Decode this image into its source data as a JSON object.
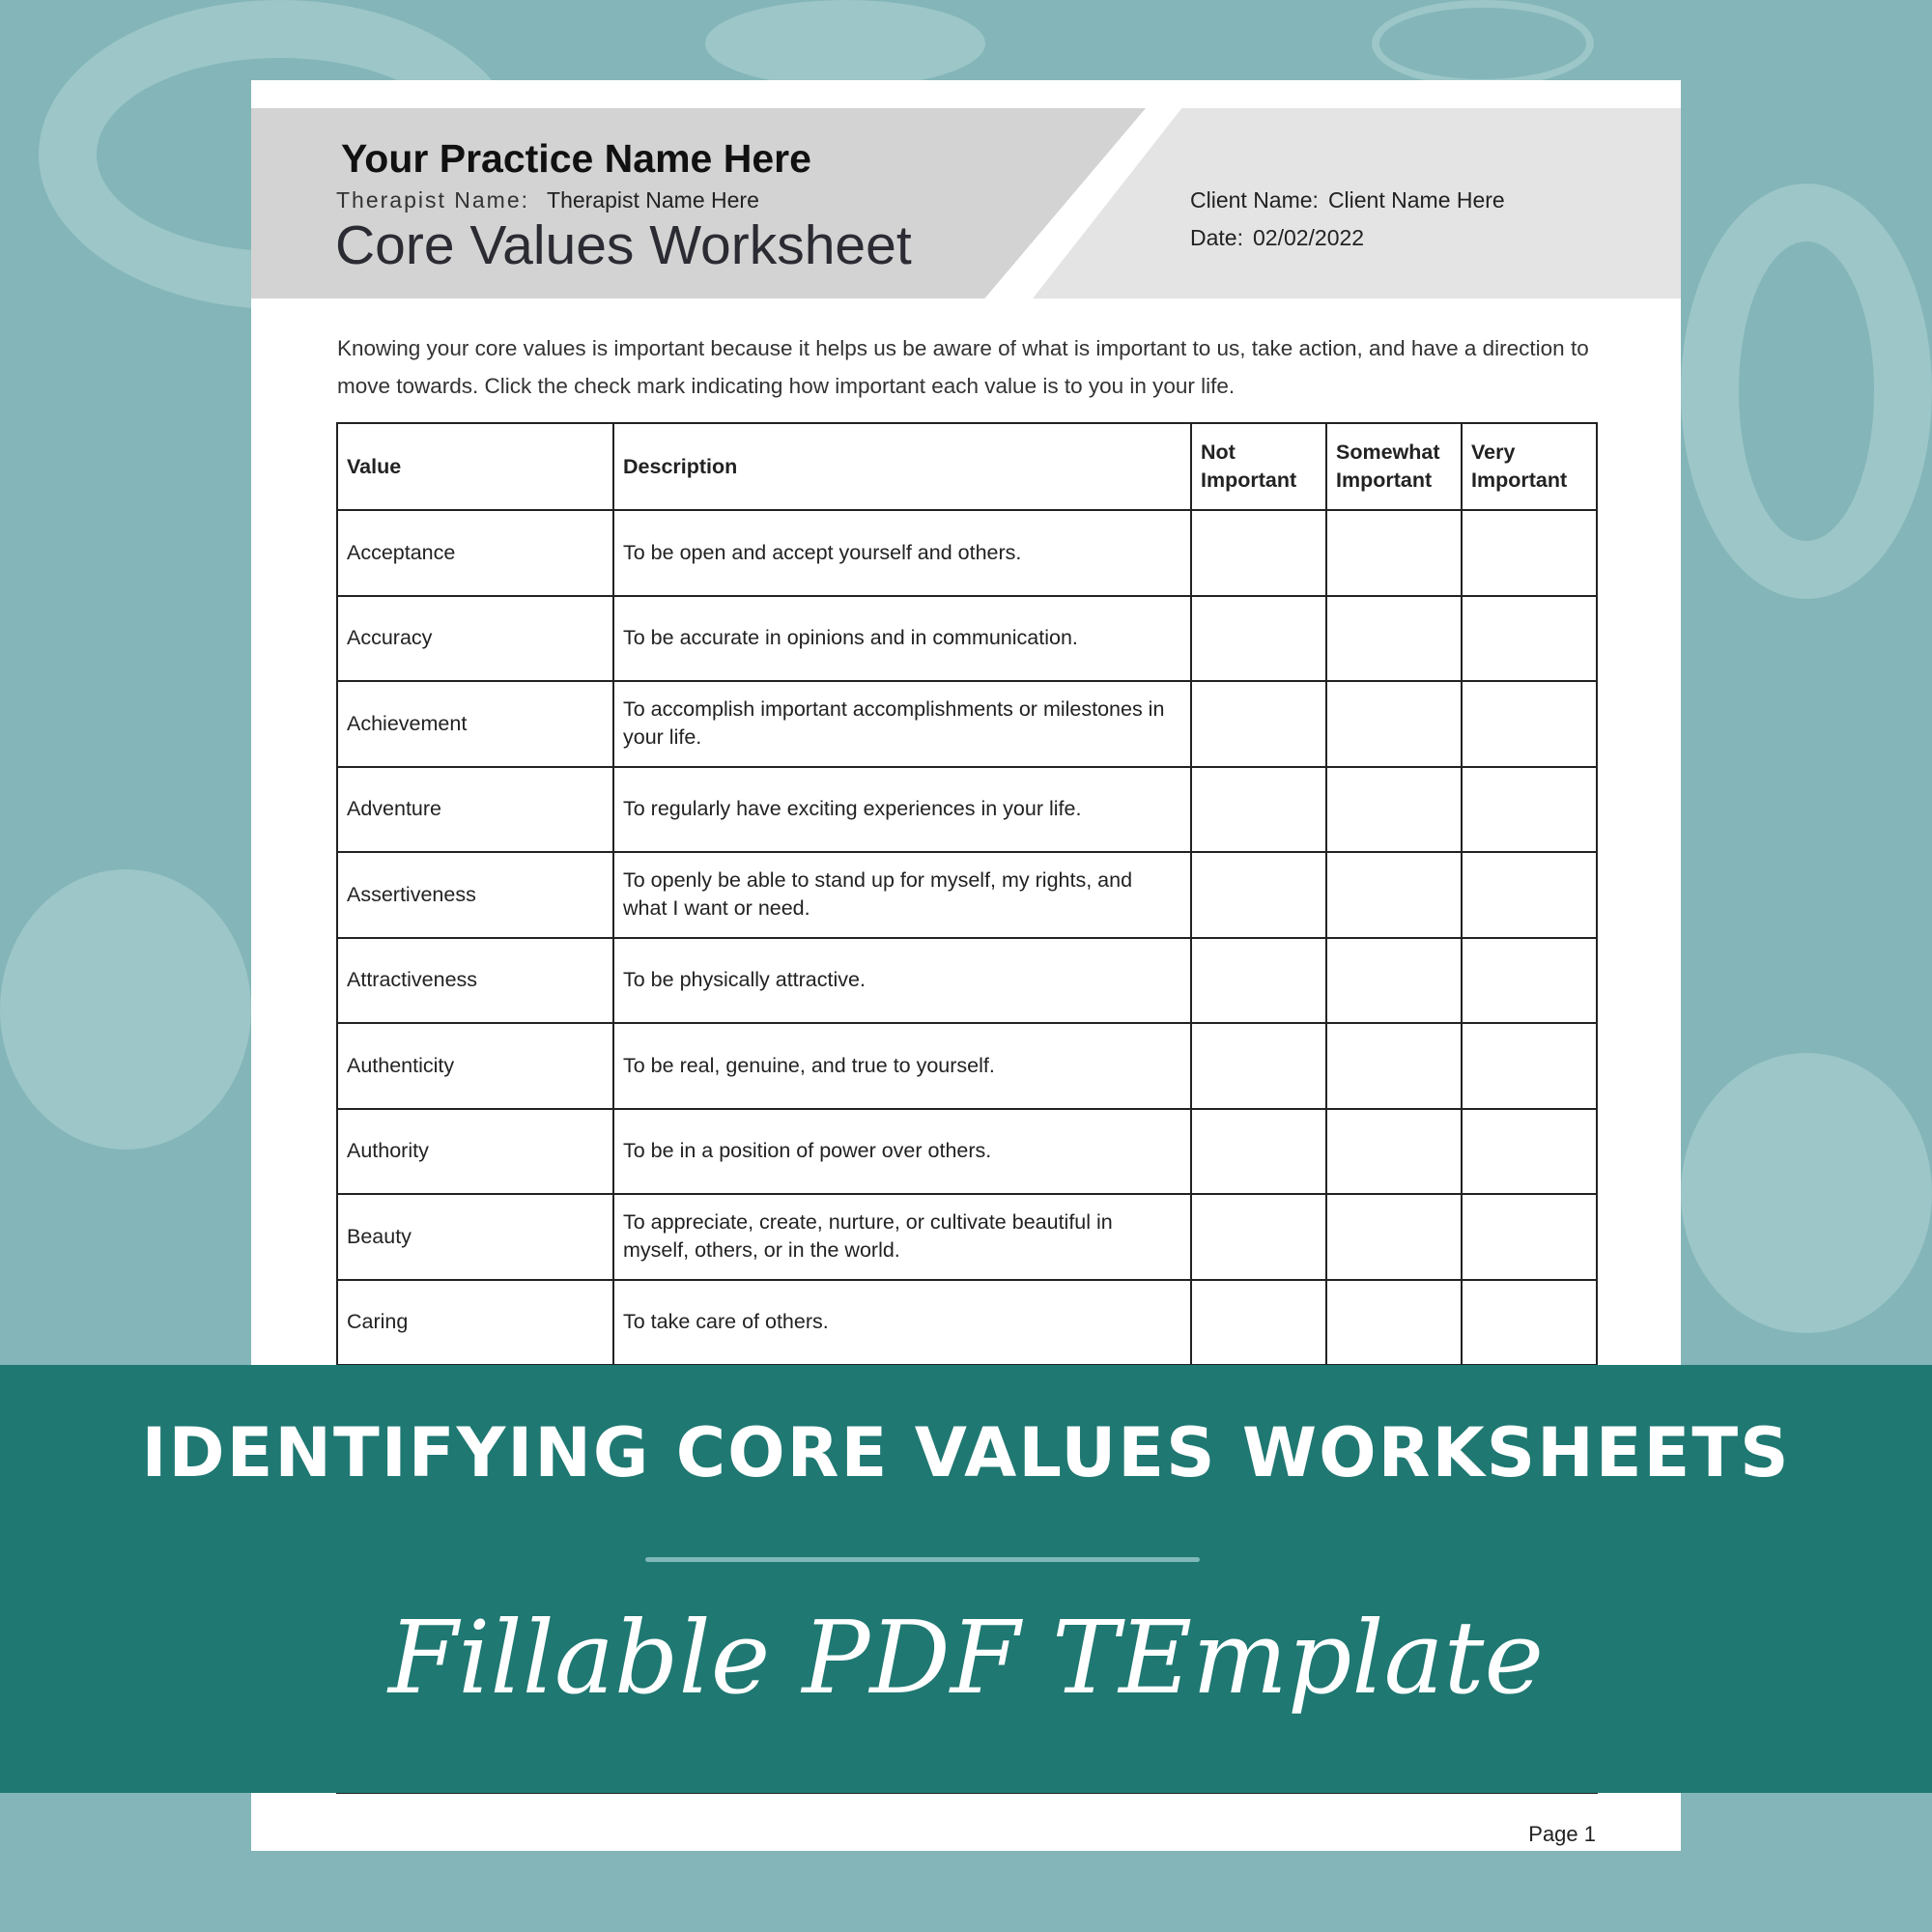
{
  "colors": {
    "background": "#84b5b8",
    "banner": "#1f7872",
    "header_band": "#d3d3d3",
    "divider": "#7fb8b8"
  },
  "header": {
    "practice_name": "Your Practice Name Here",
    "therapist_label": "Therapist Name:",
    "therapist_value": "Therapist Name Here",
    "title": "Core Values Worksheet",
    "client_label": "Client Name:",
    "client_value": "Client Name Here",
    "date_label": "Date:",
    "date_value": "02/02/2022"
  },
  "intro": "Knowing your core values is important because it helps us be aware of what is important to us, take action, and have a direction to move towards. Click the check mark indicating how important each value is to you in your life.",
  "table": {
    "headers": [
      "Value",
      "Description",
      "Not Important",
      "Somewhat Important",
      "Very Important"
    ],
    "rows": [
      {
        "value": "Acceptance",
        "description": "To be open and accept yourself and others."
      },
      {
        "value": "Accuracy",
        "description": "To be accurate in opinions and in communication."
      },
      {
        "value": "Achievement",
        "description": "To accomplish important accomplishments or milestones in your life."
      },
      {
        "value": "Adventure",
        "description": "To regularly have exciting experiences in your life."
      },
      {
        "value": "Assertiveness",
        "description": "To openly be able to stand up for myself, my rights, and what I want or need."
      },
      {
        "value": "Attractiveness",
        "description": "To be physically attractive."
      },
      {
        "value": "Authenticity",
        "description": "To be real, genuine, and true to yourself."
      },
      {
        "value": "Authority",
        "description": "To be in a position of power over others."
      },
      {
        "value": "Beauty",
        "description": "To appreciate, create, nurture, or cultivate beautiful in myself, others, or in the world."
      },
      {
        "value": "Caring",
        "description": "To take care of others."
      }
    ]
  },
  "page_label": "Page 1",
  "banner": {
    "title": "IDENTIFYING CORE VALUES WORKSHEETS",
    "subtitle": "Fillable PDF TEmplate"
  }
}
